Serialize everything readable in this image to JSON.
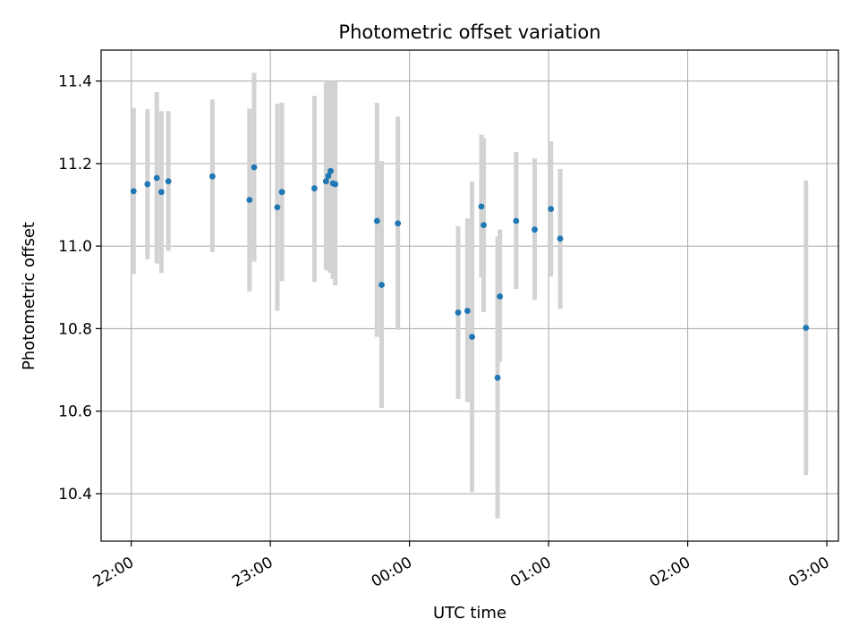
{
  "chart_data": {
    "type": "scatter",
    "title": "Photometric offset variation",
    "xlabel": "UTC time",
    "ylabel": "Photometric offset",
    "x_unit": "time (UTC)",
    "xlim": [
      "21:47",
      "03:05"
    ],
    "ylim": [
      10.285,
      11.475
    ],
    "grid": true,
    "x_ticks": [
      "22:00",
      "23:00",
      "00:00",
      "01:00",
      "02:00",
      "03:00"
    ],
    "y_ticks": [
      "10.4",
      "10.6",
      "10.8",
      "11.0",
      "11.2",
      "11.4"
    ],
    "y_tick_values": [
      10.4,
      10.6,
      10.8,
      11.0,
      11.2,
      11.4
    ],
    "point_color": "#1f77b4",
    "errorbar_color": "#d3d3d3",
    "points": [
      {
        "x": "22:01",
        "y": 11.133,
        "ylow": 10.932,
        "yhigh": 11.335
      },
      {
        "x": "22:07",
        "y": 11.15,
        "ylow": 10.968,
        "yhigh": 11.332
      },
      {
        "x": "22:11",
        "y": 11.165,
        "ylow": 10.958,
        "yhigh": 11.373
      },
      {
        "x": "22:13",
        "y": 11.131,
        "ylow": 10.935,
        "yhigh": 11.327
      },
      {
        "x": "22:16",
        "y": 11.157,
        "ylow": 10.988,
        "yhigh": 11.327
      },
      {
        "x": "22:35",
        "y": 11.169,
        "ylow": 10.985,
        "yhigh": 11.355
      },
      {
        "x": "22:51",
        "y": 11.112,
        "ylow": 10.89,
        "yhigh": 11.333
      },
      {
        "x": "22:53",
        "y": 11.191,
        "ylow": 10.962,
        "yhigh": 11.42
      },
      {
        "x": "23:03",
        "y": 11.094,
        "ylow": 10.843,
        "yhigh": 11.345
      },
      {
        "x": "23:05",
        "y": 11.131,
        "ylow": 10.915,
        "yhigh": 11.348
      },
      {
        "x": "23:19",
        "y": 11.14,
        "ylow": 10.913,
        "yhigh": 11.364
      },
      {
        "x": "23:24",
        "y": 11.157,
        "ylow": 10.943,
        "yhigh": 11.396
      },
      {
        "x": "23:25",
        "y": 11.17,
        "ylow": 10.94,
        "yhigh": 11.4
      },
      {
        "x": "23:26",
        "y": 11.182,
        "ylow": 10.935,
        "yhigh": 11.4
      },
      {
        "x": "23:27",
        "y": 11.152,
        "ylow": 10.92,
        "yhigh": 11.4
      },
      {
        "x": "23:28",
        "y": 11.15,
        "ylow": 10.905,
        "yhigh": 11.4
      },
      {
        "x": "23:46",
        "y": 11.061,
        "ylow": 10.78,
        "yhigh": 11.347
      },
      {
        "x": "23:48",
        "y": 10.906,
        "ylow": 10.608,
        "yhigh": 11.206
      },
      {
        "x": "23:55",
        "y": 11.055,
        "ylow": 10.797,
        "yhigh": 11.314
      },
      {
        "x": "00:21",
        "y": 10.839,
        "ylow": 10.63,
        "yhigh": 11.048
      },
      {
        "x": "00:25",
        "y": 10.843,
        "ylow": 10.622,
        "yhigh": 11.067
      },
      {
        "x": "00:27",
        "y": 10.78,
        "ylow": 10.404,
        "yhigh": 11.156
      },
      {
        "x": "00:31",
        "y": 11.096,
        "ylow": 10.924,
        "yhigh": 11.27
      },
      {
        "x": "00:32",
        "y": 11.051,
        "ylow": 10.84,
        "yhigh": 11.262
      },
      {
        "x": "00:38",
        "y": 10.681,
        "ylow": 10.34,
        "yhigh": 11.023
      },
      {
        "x": "00:39",
        "y": 10.878,
        "ylow": 10.72,
        "yhigh": 11.04
      },
      {
        "x": "00:46",
        "y": 11.061,
        "ylow": 10.896,
        "yhigh": 11.228
      },
      {
        "x": "00:54",
        "y": 11.04,
        "ylow": 10.87,
        "yhigh": 11.213
      },
      {
        "x": "01:01",
        "y": 11.09,
        "ylow": 10.926,
        "yhigh": 11.254
      },
      {
        "x": "01:05",
        "y": 11.018,
        "ylow": 10.848,
        "yhigh": 11.187
      },
      {
        "x": "02:51",
        "y": 10.802,
        "ylow": 10.445,
        "yhigh": 11.159
      }
    ]
  }
}
